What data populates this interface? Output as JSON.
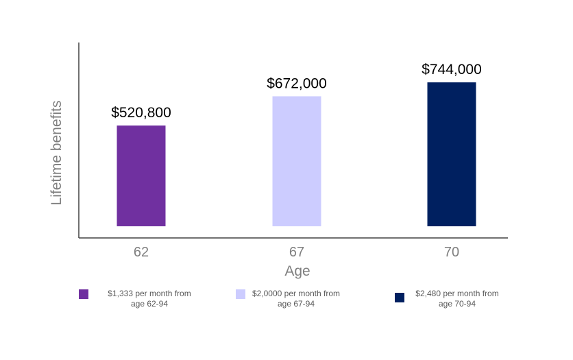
{
  "chart_data": {
    "type": "bar",
    "categories": [
      "62",
      "67",
      "70"
    ],
    "values": [
      520800,
      672000,
      744000
    ],
    "data_labels": [
      "$520,800",
      "$672,000",
      "$744,000"
    ],
    "colors": [
      "#7030a0",
      "#ccccff",
      "#002060"
    ],
    "title": "",
    "xlabel": "Age",
    "ylabel": "Lifetime benefits",
    "ylim": [
      0,
      950000
    ],
    "grid": false,
    "legend_position": "bottom",
    "legend": [
      {
        "line1": "$1,333 per month from",
        "line2": "age 62-94",
        "color": "#7030a0"
      },
      {
        "line1": "$2,0000 per month from",
        "line2": "age 67-94",
        "color": "#ccccff"
      },
      {
        "line1": "$2,480 per month from",
        "line2": "age 70-94",
        "color": "#002060"
      }
    ]
  }
}
